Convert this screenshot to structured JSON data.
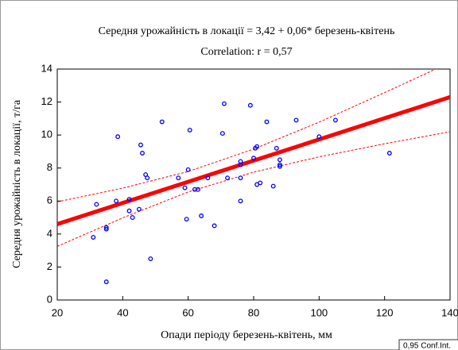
{
  "chart_data": {
    "type": "scatter",
    "title": "Середня урожайність в локації = 3,42 + 0,06* березень-квітень",
    "subtitle": "Correlation: r = 0,57",
    "x_label": "Опади періоду березень-квітень, мм",
    "y_label": "Середня урожайність в локації, т/га",
    "legend": "0,95 Conf.Int.",
    "xlim": [
      20,
      140
    ],
    "xticks": [
      20,
      40,
      60,
      80,
      100,
      120,
      140
    ],
    "ylim": [
      0,
      14
    ],
    "yticks": [
      0,
      2,
      4,
      6,
      8,
      10,
      12,
      14
    ],
    "color": "#0000ff",
    "x": [
      31,
      32,
      35,
      35,
      35,
      38,
      38.5,
      42,
      42,
      43,
      45,
      45.5,
      46,
      47,
      47.5,
      48.5,
      52,
      57,
      59,
      59.5,
      60,
      60.5,
      62,
      63,
      64,
      66,
      68,
      70.5,
      71,
      72,
      76,
      76,
      76,
      76,
      79,
      80,
      80.5,
      81,
      81,
      82,
      84,
      86,
      87,
      88,
      88,
      88,
      93,
      100,
      105,
      121.5
    ],
    "values": [
      3.8,
      5.8,
      4.3,
      4.4,
      1.1,
      6.0,
      9.9,
      5.4,
      6.1,
      5.0,
      5.5,
      9.4,
      8.9,
      7.6,
      7.4,
      2.5,
      10.8,
      7.4,
      6.8,
      4.9,
      7.9,
      10.3,
      6.7,
      6.7,
      5.1,
      7.4,
      4.5,
      10.1,
      11.9,
      7.4,
      6.0,
      7.4,
      8.2,
      8.4,
      11.8,
      8.6,
      9.2,
      9.3,
      7.0,
      7.1,
      10.8,
      6.9,
      9.2,
      8.5,
      8.2,
      8.1,
      10.9,
      9.9,
      10.9,
      8.9
    ],
    "fit": {
      "color": "#ff0000",
      "x": [
        20,
        140
      ],
      "y": [
        4.6,
        12.3
      ]
    },
    "band": {
      "color": "#ff0000",
      "x": [
        20,
        40,
        60,
        80,
        100,
        120,
        140
      ],
      "upper": [
        5.95,
        6.78,
        7.79,
        9.15,
        10.78,
        12.57,
        14.4
      ],
      "lower": [
        3.25,
        4.98,
        6.55,
        7.75,
        8.68,
        9.47,
        10.2
      ]
    }
  }
}
